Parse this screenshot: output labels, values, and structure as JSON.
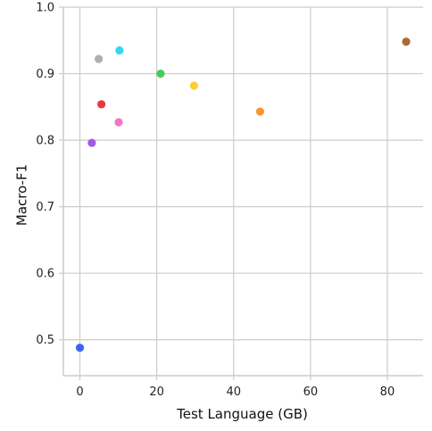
{
  "chart_data": {
    "type": "scatter",
    "title": "",
    "xlabel": "Test Language (GB)",
    "ylabel": "Macro-F1",
    "xlim": [
      -4.3,
      89.3
    ],
    "ylim": [
      0.446,
      1.0
    ],
    "xticks": [
      0,
      20,
      40,
      60,
      80
    ],
    "yticks": [
      0.5,
      0.6,
      0.7,
      0.8,
      0.9,
      1.0
    ],
    "xtick_labels": [
      "0",
      "20",
      "40",
      "60",
      "80"
    ],
    "ytick_labels": [
      "0.5",
      "0.6",
      "0.7",
      "0.8",
      "0.9",
      "1.0"
    ],
    "grid": true,
    "points": [
      {
        "x": 0.0,
        "y": 0.488,
        "color": "#2b55f0"
      },
      {
        "x": 3.1,
        "y": 0.796,
        "color": "#9b46e8"
      },
      {
        "x": 4.9,
        "y": 0.922,
        "color": "#a6a6a6"
      },
      {
        "x": 5.6,
        "y": 0.854,
        "color": "#e8202a"
      },
      {
        "x": 10.1,
        "y": 0.827,
        "color": "#f266c2"
      },
      {
        "x": 10.3,
        "y": 0.935,
        "color": "#1fd2f0"
      },
      {
        "x": 21.0,
        "y": 0.9,
        "color": "#32c846"
      },
      {
        "x": 29.7,
        "y": 0.882,
        "color": "#f7cb1f"
      },
      {
        "x": 46.9,
        "y": 0.843,
        "color": "#f58a1e"
      },
      {
        "x": 84.9,
        "y": 0.948,
        "color": "#a15a1e"
      }
    ]
  }
}
